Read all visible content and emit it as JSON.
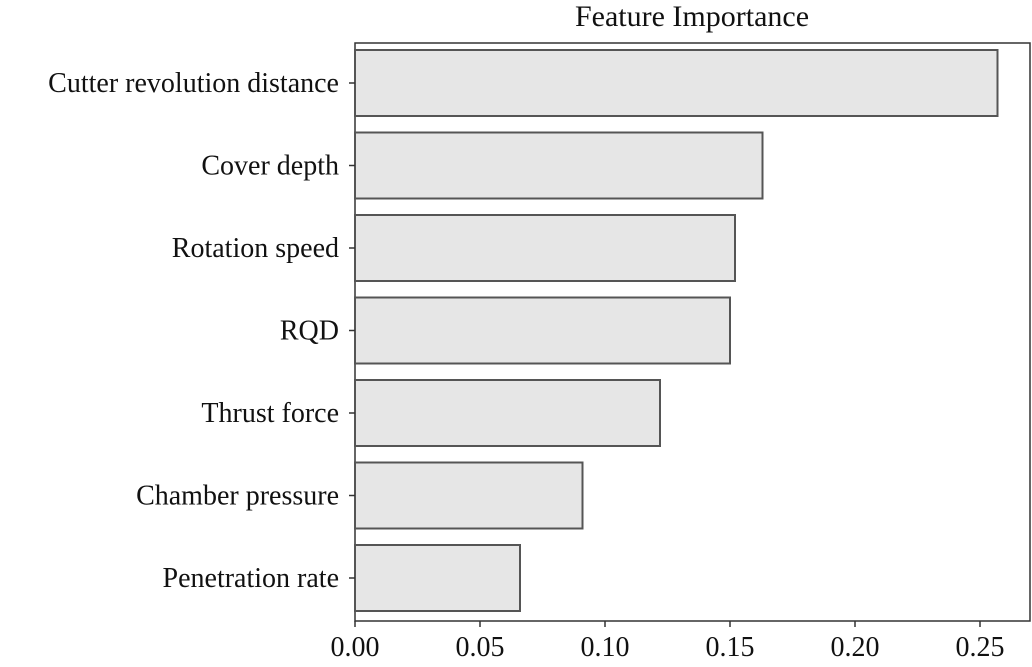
{
  "chart_data": {
    "type": "bar",
    "orientation": "horizontal",
    "title": "Feature Importance",
    "xlabel": "",
    "ylabel": "",
    "categories": [
      "Cutter revolution distance",
      "Cover depth",
      "Rotation speed",
      "RQD",
      "Thrust force",
      "Chamber pressure",
      "Penetration rate"
    ],
    "values": [
      0.257,
      0.163,
      0.152,
      0.15,
      0.122,
      0.091,
      0.066
    ],
    "xlim": [
      0.0,
      0.27
    ],
    "xticks": [
      0.0,
      0.05,
      0.1,
      0.15,
      0.2,
      0.25
    ],
    "xtick_labels": [
      "0.00",
      "0.05",
      "0.10",
      "0.15",
      "0.20",
      "0.25"
    ],
    "grid": false,
    "legend": "none",
    "bar_fill_color": "#e6e6e6",
    "bar_edge_color": "#555555"
  }
}
